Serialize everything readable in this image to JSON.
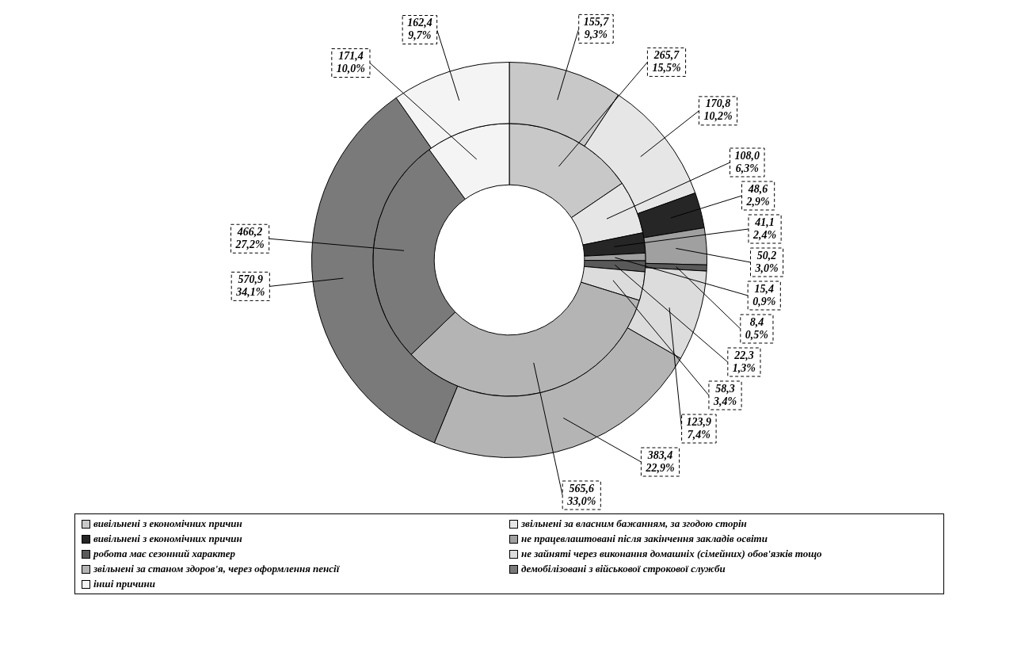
{
  "chart_data": {
    "type": "donut",
    "categories": [
      "вивільнені з економічних причин",
      "звільнені за власним бажанням, за згодою сторін",
      "вивільнені з економічних причин",
      "не працевлаштовані після закінчення закладів освіти",
      "робота має сезонний характер",
      "не зайняті через виконання домашніх (сімейних) обов'язків тощо",
      "звільнені за станом здоров'я, через оформлення пенсії",
      "демобілізовані з військової строкової служби",
      "інші причини"
    ],
    "colors": [
      "#c8c8c8",
      "#e6e6e6",
      "#262626",
      "#a0a0a0",
      "#595959",
      "#dcdcdc",
      "#b4b4b4",
      "#7a7a7a",
      "#f4f4f4"
    ],
    "series": [
      {
        "values": [
          155.7,
          170.8,
          48.6,
          50.2,
          8.4,
          123.9,
          383.4,
          570.9,
          162.4
        ],
        "value_labels": [
          "155,7\n9,3%",
          "170,8\n10,2%",
          "48,6\n2,9%",
          "50,2\n3,0%",
          "8,4\n0,5%",
          "123,9\n7,4%",
          "383,4\n22,9%",
          "570,9\n34,1%",
          "162,4\n9,7%"
        ]
      },
      {
        "values": [
          265.7,
          108.0,
          41.1,
          15.4,
          22.3,
          58.3,
          565.6,
          466.2,
          171.4
        ],
        "value_labels": [
          "265,7\n15,5%",
          "108,0\n6,3%",
          "41,1\n2,4%",
          "15,4\n0,9%",
          "22,3\n1,3%",
          "58,3\n3,4%",
          "565,6\n33,0%",
          "466,2\n27,2%",
          "171,4\n10,0%"
        ]
      }
    ],
    "legend": "bottom"
  }
}
